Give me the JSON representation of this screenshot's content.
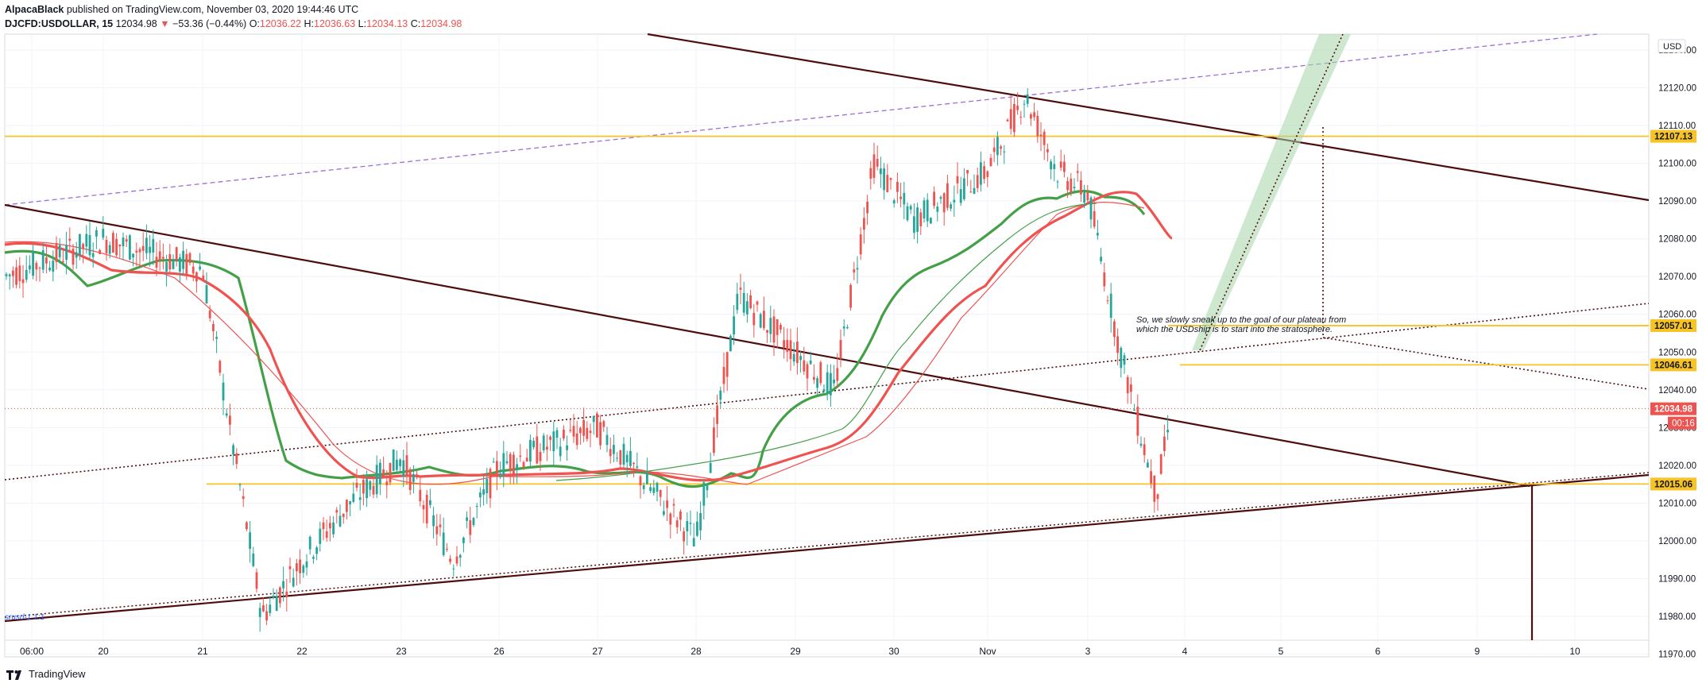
{
  "header": {
    "author": "AlpacaBlack",
    "published": "published on TradingView.com, November 03, 2020 19:44:46 UTC",
    "symbol": "DJCFD:USDOLLAR, 15",
    "last": "12034.98",
    "change_arrow": "▼",
    "change": "−53.36 (−0.44%)",
    "o_label": "O:",
    "o_value": "12036.22",
    "h_label": "H:",
    "h_value": "12036.63",
    "l_label": "L:",
    "l_value": "12034.13",
    "c_label": "C:",
    "c_value": "12034.98"
  },
  "footer": {
    "brand": "TradingView"
  },
  "chart_data": {
    "type": "line",
    "title": "DJCFD:USDOLLAR, 15",
    "currency": "USD",
    "ylim": [
      11964,
      12138
    ],
    "y_ticks": [
      11970,
      11980,
      11990,
      12000,
      12010,
      12020,
      12030,
      12040,
      12050,
      12060,
      12070,
      12080,
      12090,
      12100,
      12110,
      12120,
      12130
    ],
    "x_ticks": [
      "06:00",
      "20",
      "21",
      "22",
      "23",
      "26",
      "27",
      "28",
      "29",
      "30",
      "Nov",
      "3",
      "4",
      "5",
      "6",
      "9",
      "10"
    ],
    "price_labels": [
      {
        "value": 12107.13,
        "label": "12107.13",
        "color": "#f7c325",
        "text_color": "#131722"
      },
      {
        "value": 12057.01,
        "label": "12057.01",
        "color": "#f7c325",
        "text_color": "#131722"
      },
      {
        "value": 12046.61,
        "label": "12046.61",
        "color": "#f7c325",
        "text_color": "#131722"
      },
      {
        "value": 12034.98,
        "label": "12034.98",
        "color": "#ef5350",
        "text_color": "#ffffff"
      },
      {
        "value": 12015.06,
        "label": "12015.06",
        "color": "#f7c325",
        "text_color": "#131722"
      }
    ],
    "countdown": "00:16",
    "horizontal_levels": [
      12107.13,
      12057.01,
      12046.61,
      12015.06
    ],
    "series": [
      {
        "name": "price",
        "color_up": "#26a69a",
        "color_down": "#ef5350",
        "x": [
          "06:00",
          "20",
          "21",
          "21.6",
          "22",
          "22.5",
          "23",
          "23.4",
          "26",
          "27",
          "28",
          "28.5",
          "29",
          "29.6",
          "30",
          "30.5",
          "Nov",
          "Nov.4",
          "Nov.8",
          "3",
          "3.3",
          "3.7",
          "3.85"
        ],
        "values": [
          12070,
          12080,
          12072,
          11980,
          11995,
          12010,
          12022,
          11995,
          12020,
          12030,
          12000,
          12065,
          12050,
          12040,
          12100,
          12085,
          12098,
          12118,
          12098,
          12092,
          12050,
          12012,
          12035
        ]
      },
      {
        "name": "ema-fast",
        "color": "#43a047"
      },
      {
        "name": "ema-slow",
        "color": "#ef5350"
      }
    ],
    "annotations": [
      {
        "text": "So, we slowly sneak up to the goal of our plateau from",
        "line": 1
      },
      {
        "text": "which the USDship is to start into the stratosphere.",
        "line": 2
      },
      {
        "text": "srusd-1 1:1",
        "line": 3
      }
    ],
    "legend": "none",
    "grid": true
  }
}
